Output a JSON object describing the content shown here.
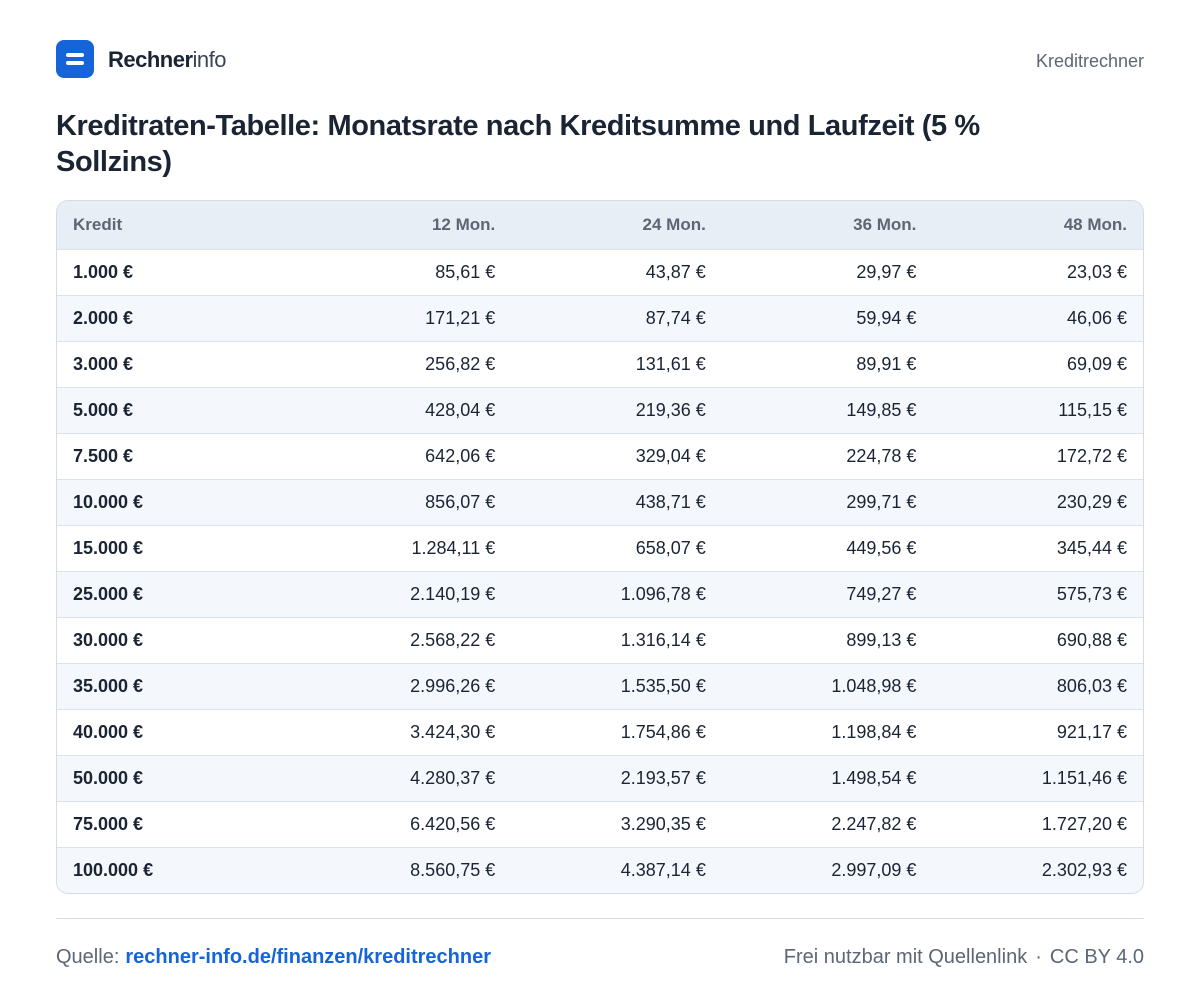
{
  "header": {
    "brand_strong": "Rechner",
    "brand_light": "info",
    "nav_label": "Kreditrechner"
  },
  "page": {
    "title": "Kreditraten-Tabelle:  Monatsrate nach Kreditsumme und Laufzeit (5 % Sollzins)"
  },
  "table": {
    "columns": [
      "Kredit",
      "12 Mon.",
      "24 Mon.",
      "36 Mon.",
      "48 Mon."
    ],
    "rows": [
      [
        "1.000 €",
        "85,61 €",
        "43,87 €",
        "29,97 €",
        "23,03 €"
      ],
      [
        "2.000 €",
        "171,21 €",
        "87,74 €",
        "59,94 €",
        "46,06 €"
      ],
      [
        "3.000 €",
        "256,82 €",
        "131,61 €",
        "89,91 €",
        "69,09 €"
      ],
      [
        "5.000 €",
        "428,04 €",
        "219,36 €",
        "149,85 €",
        "115,15 €"
      ],
      [
        "7.500 €",
        "642,06 €",
        "329,04 €",
        "224,78 €",
        "172,72 €"
      ],
      [
        "10.000 €",
        "856,07 €",
        "438,71 €",
        "299,71 €",
        "230,29 €"
      ],
      [
        "15.000 €",
        "1.284,11 €",
        "658,07 €",
        "449,56 €",
        "345,44 €"
      ],
      [
        "25.000 €",
        "2.140,19 €",
        "1.096,78 €",
        "749,27 €",
        "575,73 €"
      ],
      [
        "30.000 €",
        "2.568,22 €",
        "1.316,14 €",
        "899,13 €",
        "690,88 €"
      ],
      [
        "35.000 €",
        "2.996,26 €",
        "1.535,50 €",
        "1.048,98 €",
        "806,03 €"
      ],
      [
        "40.000 €",
        "3.424,30 €",
        "1.754,86 €",
        "1.198,84 €",
        "921,17 €"
      ],
      [
        "50.000 €",
        "4.280,37 €",
        "2.193,57 €",
        "1.498,54 €",
        "1.151,46 €"
      ],
      [
        "75.000 €",
        "6.420,56 €",
        "3.290,35 €",
        "2.247,82 €",
        "1.727,20 €"
      ],
      [
        "100.000 €",
        "8.560,75 €",
        "4.387,14 €",
        "2.997,09 €",
        "2.302,93 €"
      ]
    ]
  },
  "footer": {
    "source_label": "Quelle:",
    "source_link": "rechner-info.de/finanzen/kreditrechner",
    "license_text": "Frei nutzbar mit Quellenlink",
    "separator": "·",
    "license": "CC BY 4.0"
  },
  "colors": {
    "accent": "#1565d8",
    "text": "#1a2433",
    "muted": "#5c6675",
    "header_bg": "#e8eef6",
    "row_alt_bg": "#f4f7fb"
  },
  "icons": {
    "logo": "rechnerinfo-logo-icon"
  }
}
